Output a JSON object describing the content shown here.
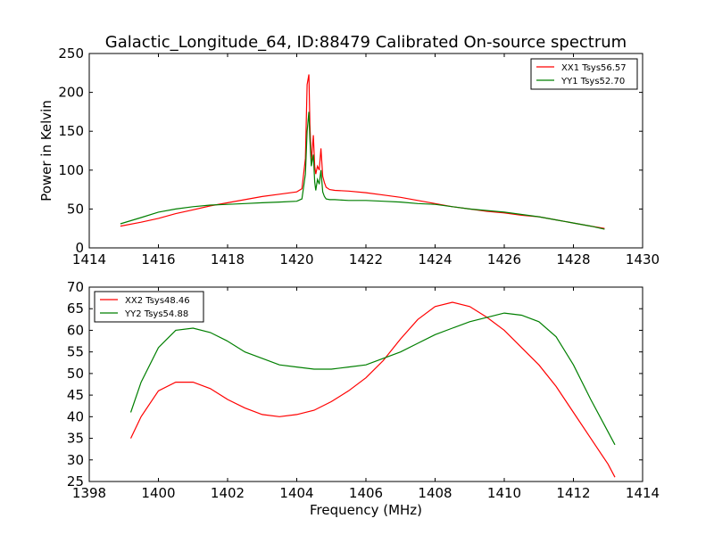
{
  "title": "Galactic_Longitude_64, ID:88479 Calibrated On-source spectrum",
  "colors": {
    "xx": "#ff0000",
    "yy": "#007f00"
  },
  "chart_data": [
    {
      "type": "line",
      "ylabel": "Power in Kelvin",
      "xlabel": "",
      "xlim": [
        1414,
        1430
      ],
      "ylim": [
        0,
        250
      ],
      "xticks": [
        "1414",
        "1416",
        "1418",
        "1420",
        "1422",
        "1424",
        "1426",
        "1428",
        "1430"
      ],
      "yticks": [
        "0",
        "50",
        "100",
        "150",
        "200",
        "250"
      ],
      "legend": "top-right",
      "series": [
        {
          "name": "XX1 Tsys56.57",
          "color": "#ff0000",
          "x": [
            1414.9,
            1415.5,
            1416,
            1416.5,
            1417,
            1417.5,
            1418,
            1418.5,
            1419,
            1419.5,
            1420,
            1420.15,
            1420.25,
            1420.3,
            1420.35,
            1420.38,
            1420.42,
            1420.48,
            1420.52,
            1420.55,
            1420.6,
            1420.65,
            1420.7,
            1420.75,
            1420.8,
            1420.85,
            1420.95,
            1421.1,
            1421.5,
            1422,
            1422.5,
            1423,
            1423.5,
            1424,
            1424.5,
            1425,
            1425.5,
            1426,
            1426.5,
            1427,
            1427.5,
            1428,
            1428.5,
            1428.9
          ],
          "y": [
            28,
            33,
            38,
            44,
            49,
            54,
            58,
            62,
            66,
            69,
            72,
            76,
            115,
            210,
            223,
            160,
            110,
            145,
            105,
            95,
            105,
            100,
            128,
            92,
            84,
            78,
            75,
            74,
            73,
            71,
            68,
            65,
            61,
            57,
            53,
            50,
            47,
            45,
            42,
            40,
            36,
            32,
            28,
            25
          ]
        },
        {
          "name": "YY1 Tsys52.70",
          "color": "#007f00",
          "x": [
            1414.9,
            1415.5,
            1416,
            1416.5,
            1417,
            1417.5,
            1418,
            1418.5,
            1419,
            1419.5,
            1420,
            1420.15,
            1420.25,
            1420.3,
            1420.35,
            1420.38,
            1420.42,
            1420.48,
            1420.52,
            1420.55,
            1420.6,
            1420.65,
            1420.7,
            1420.75,
            1420.8,
            1420.85,
            1420.95,
            1421.1,
            1421.5,
            1422,
            1422.5,
            1423,
            1423.5,
            1424,
            1424.5,
            1425,
            1425.5,
            1426,
            1426.5,
            1427,
            1427.5,
            1428,
            1428.5,
            1428.9
          ],
          "y": [
            31,
            39,
            46,
            50,
            53,
            55,
            56,
            57,
            58,
            59,
            60,
            63,
            95,
            150,
            175,
            140,
            105,
            120,
            85,
            74,
            88,
            82,
            100,
            72,
            66,
            63,
            62,
            62,
            61,
            61,
            60,
            59,
            57,
            56,
            53,
            50,
            48,
            46,
            43,
            40,
            36,
            32,
            28,
            24
          ]
        }
      ]
    },
    {
      "type": "line",
      "ylabel": "",
      "xlabel": "Frequency (MHz)",
      "xlim": [
        1398,
        1414
      ],
      "ylim": [
        25,
        70
      ],
      "xticks": [
        "1398",
        "1400",
        "1402",
        "1404",
        "1406",
        "1408",
        "1410",
        "1412",
        "1414"
      ],
      "yticks": [
        "25",
        "30",
        "35",
        "40",
        "45",
        "50",
        "55",
        "60",
        "65",
        "70"
      ],
      "legend": "top-left",
      "series": [
        {
          "name": "XX2 Tsys48.46",
          "color": "#ff0000",
          "x": [
            1399.2,
            1399.5,
            1400,
            1400.5,
            1401,
            1401.5,
            1402,
            1402.5,
            1403,
            1403.5,
            1404,
            1404.5,
            1405,
            1405.5,
            1406,
            1406.5,
            1407,
            1407.5,
            1408,
            1408.5,
            1409,
            1409.5,
            1410,
            1410.5,
            1411,
            1411.5,
            1412,
            1412.5,
            1413,
            1413.2
          ],
          "y": [
            35,
            40,
            46,
            48,
            48,
            46.5,
            44,
            42,
            40.5,
            40,
            40.5,
            41.5,
            43.5,
            46,
            49,
            53,
            58,
            62.5,
            65.5,
            66.5,
            65.5,
            63,
            60,
            56,
            52,
            47,
            41,
            35,
            29,
            26
          ]
        },
        {
          "name": "YY2 Tsys54.88",
          "color": "#007f00",
          "x": [
            1399.2,
            1399.5,
            1400,
            1400.5,
            1401,
            1401.5,
            1402,
            1402.5,
            1403,
            1403.5,
            1404,
            1404.5,
            1405,
            1405.5,
            1406,
            1406.5,
            1407,
            1407.5,
            1408,
            1408.5,
            1409,
            1409.5,
            1410,
            1410.5,
            1411,
            1411.5,
            1412,
            1412.5,
            1413,
            1413.2
          ],
          "y": [
            41,
            48,
            56,
            60,
            60.5,
            59.5,
            57.5,
            55,
            53.5,
            52,
            51.5,
            51,
            51,
            51.5,
            52,
            53.5,
            55,
            57,
            59,
            60.5,
            62,
            63,
            64,
            63.5,
            62,
            58.5,
            52,
            44,
            36.5,
            33.5
          ]
        }
      ]
    }
  ]
}
